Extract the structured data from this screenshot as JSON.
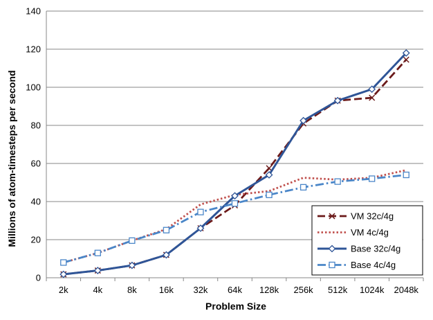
{
  "chart_data": {
    "type": "line",
    "title": "",
    "xlabel": "Problem Size",
    "ylabel": "Millions of atom-timesteps per second",
    "categories": [
      "2k",
      "4k",
      "8k",
      "16k",
      "32k",
      "64k",
      "128k",
      "256k",
      "512k",
      "1024k",
      "2048k"
    ],
    "ylim": [
      0,
      140
    ],
    "yticks": [
      0,
      20,
      40,
      60,
      80,
      100,
      120,
      140
    ],
    "grid": "horizontal",
    "legend_position": "bottom-right",
    "series": [
      {
        "name": "VM 32c/4g",
        "color": "#6b1a1a",
        "dash": "long-dash",
        "marker": "x",
        "values": [
          1.8,
          3.8,
          6.5,
          12.0,
          26.0,
          38.0,
          57.5,
          81.0,
          93.0,
          94.5,
          114.5
        ]
      },
      {
        "name": "VM 4c/4g",
        "color": "#c0504d",
        "dash": "dotted",
        "marker": "none",
        "values": [
          8.0,
          13.0,
          19.5,
          25.5,
          38.5,
          43.5,
          45.5,
          52.5,
          51.5,
          52.5,
          56.5
        ]
      },
      {
        "name": "Base 32c/4g",
        "color": "#2f5597",
        "dash": "solid",
        "marker": "diamond",
        "values": [
          1.8,
          3.8,
          6.5,
          12.0,
          26.0,
          43.0,
          54.0,
          82.5,
          93.0,
          99.0,
          118.0
        ]
      },
      {
        "name": "Base 4c/4g",
        "color": "#4a86c8",
        "dash": "dash-dot",
        "marker": "square",
        "values": [
          8.0,
          13.0,
          19.5,
          25.0,
          34.5,
          39.0,
          43.5,
          47.5,
          50.5,
          52.0,
          54.0
        ]
      }
    ]
  }
}
